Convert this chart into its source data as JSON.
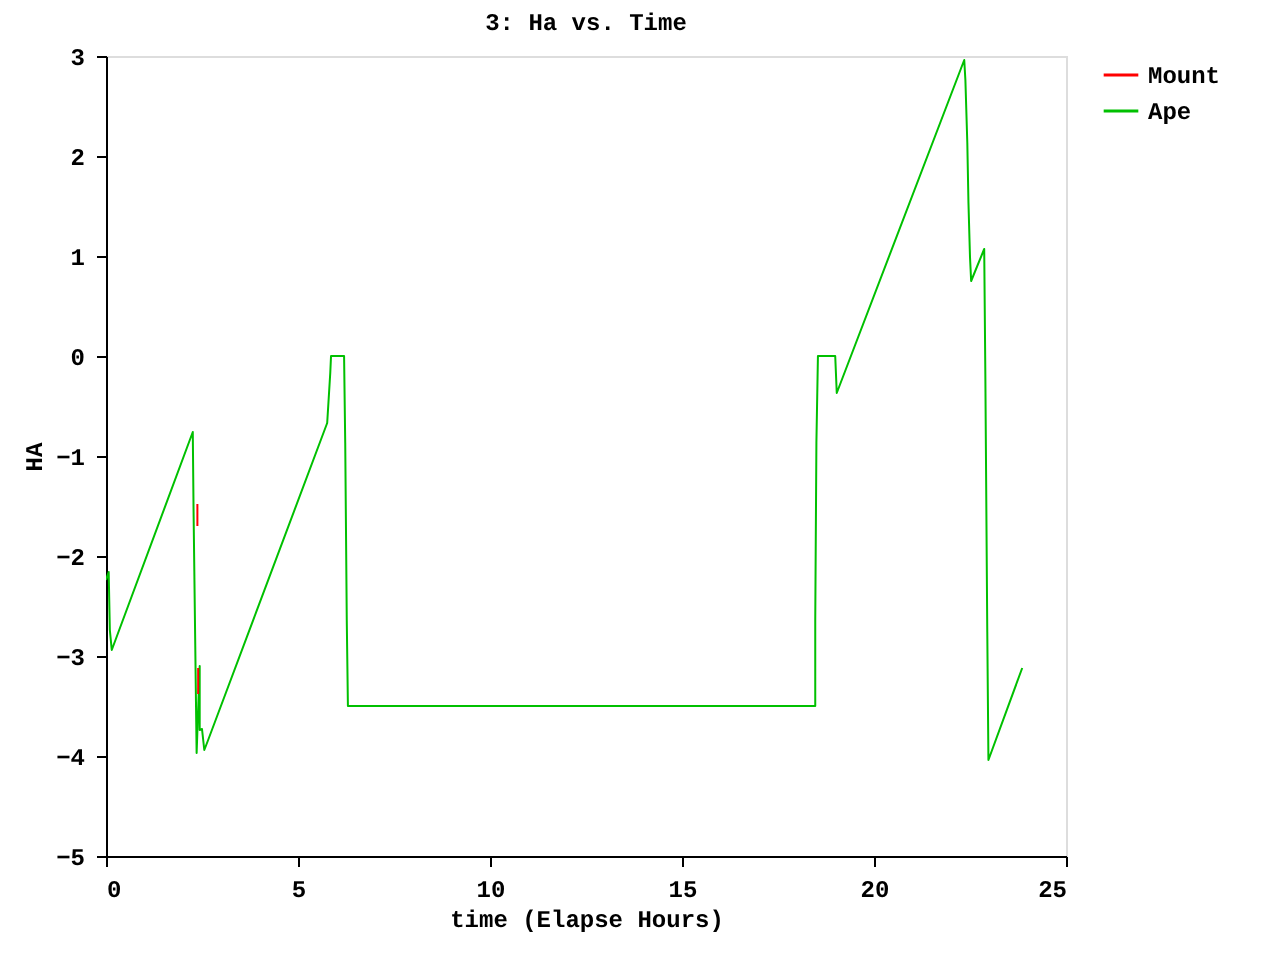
{
  "chart_data": {
    "type": "line",
    "title": "3: Ha vs. Time",
    "xlabel": "time (Elapse Hours)",
    "ylabel": "HA",
    "xlim": [
      0,
      25
    ],
    "xticks": [
      0,
      5,
      10,
      15,
      20,
      25
    ],
    "ylim": [
      -5,
      3
    ],
    "yticks": [
      -5,
      -4,
      -3,
      -2,
      -1,
      0,
      1,
      2,
      3
    ],
    "grid": false,
    "legend": "top right",
    "line_style": "solid",
    "marker": "none",
    "series": [
      {
        "name": "Mount",
        "color": "#ff0000",
        "x": [
          2.38,
          2.38,
          2.39,
          2.4,
          2.4
        ],
        "values": [
          -1.48,
          -1.7,
          null,
          -3.12,
          -3.38
        ]
      },
      {
        "name": "Ape",
        "color": "#00c000",
        "x": [
          0,
          0.07,
          0.1,
          0.15,
          2.26,
          2.28,
          2.36,
          2.44,
          2.44,
          2.5,
          2.56,
          2.66,
          5.76,
          5.84,
          5.86,
          6.2,
          6.23,
          6.27,
          6.3,
          18.47,
          18.47,
          18.5,
          18.54,
          18.99,
          19.03,
          22.35,
          22.38,
          22.43,
          22.46,
          22.5,
          22.53,
          22.87,
          22.9,
          22.95,
          22.98,
          23.86
        ],
        "values": [
          -2.24,
          -2.16,
          -2.74,
          -2.94,
          -0.76,
          -1.54,
          -3.97,
          -3.1,
          -3.74,
          -3.73,
          -3.94,
          -3.84,
          -0.67,
          -0.17,
          0,
          0,
          -0.87,
          -2.64,
          -3.5,
          -3.5,
          -2.64,
          -0.87,
          0,
          0,
          -0.37,
          2.96,
          2.76,
          2.13,
          1.53,
          0.99,
          0.75,
          1.07,
          -0.21,
          -2.76,
          -4.04,
          -3.12
        ]
      }
    ]
  }
}
